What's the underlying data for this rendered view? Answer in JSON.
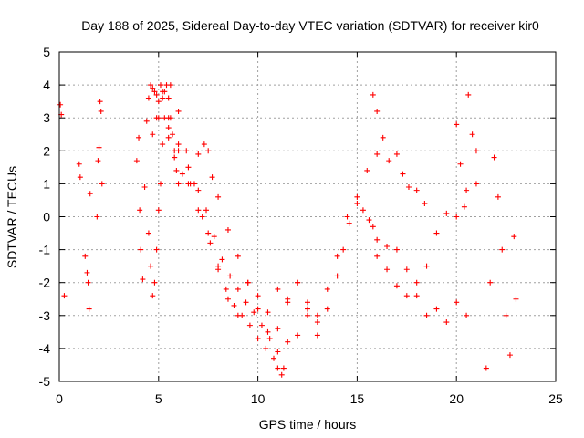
{
  "chart_data": {
    "type": "scatter",
    "title": "Day 188 of 2025, Sidereal Day-to-day VTEC variation (SDTVAR) for receiver kir0",
    "xlabel": "GPS time / hours",
    "ylabel": "SDTVAR / TECUs",
    "xlim": [
      0,
      25
    ],
    "ylim": [
      -5,
      5
    ],
    "xticks": [
      0,
      5,
      10,
      15,
      20,
      25
    ],
    "yticks": [
      -5,
      -4,
      -3,
      -2,
      -1,
      0,
      1,
      2,
      3,
      4,
      5
    ],
    "xtick_labels": [
      "0",
      "5",
      "10",
      "15",
      "20",
      "25"
    ],
    "ytick_labels": [
      "-5",
      "-4",
      "-3",
      "-2",
      "-1",
      "0",
      "1",
      "2",
      "3",
      "4",
      "5"
    ],
    "grid": true,
    "marker": "+",
    "series": [
      {
        "name": "SDTVAR",
        "color": "#ff0000",
        "x": [
          0.05,
          0.1,
          0.25,
          1.0,
          1.05,
          1.3,
          1.4,
          1.45,
          1.5,
          1.55,
          1.9,
          1.95,
          2.0,
          2.05,
          2.1,
          2.15,
          3.9,
          4.0,
          4.05,
          4.1,
          4.2,
          4.3,
          4.4,
          4.5,
          4.6,
          4.7,
          4.8,
          4.9,
          5.0,
          5.1,
          5.2,
          5.3,
          5.4,
          5.5,
          5.6,
          5.7,
          5.8,
          5.9,
          6.0,
          4.5,
          4.6,
          4.7,
          4.8,
          4.9,
          5.0,
          5.1,
          5.2,
          5.3,
          5.5,
          5.8,
          6.2,
          6.6,
          7.0,
          7.4,
          7.8,
          8.2,
          8.6,
          9.0,
          9.4,
          9.8,
          10.2,
          10.6,
          11.0,
          11.3,
          5.5,
          6.0,
          6.5,
          7.0,
          7.3,
          7.5,
          7.7,
          8.0,
          8.5,
          9.0,
          9.5,
          10.0,
          10.5,
          11.0,
          11.5,
          12.0,
          12.5,
          13.0,
          13.5,
          14.0,
          14.5,
          15.0,
          15.5,
          16.0,
          5.0,
          5.5,
          6.0,
          6.5,
          7.0,
          7.5,
          8.0,
          8.5,
          9.0,
          9.5,
          10.0,
          10.5,
          11.0,
          11.5,
          12.0,
          12.5,
          13.0,
          4.7,
          4.9,
          5.2,
          5.6,
          6.0,
          6.4,
          6.8,
          7.2,
          7.6,
          8.0,
          8.4,
          8.8,
          9.2,
          9.6,
          10.0,
          10.4,
          10.8,
          11.0,
          11.2,
          11.5,
          12.0,
          12.5,
          13.0,
          13.5,
          14.0,
          14.3,
          14.6,
          15.0,
          15.3,
          15.6,
          15.8,
          15.8,
          16.0,
          16.3,
          16.6,
          17.0,
          17.3,
          17.6,
          18.0,
          18.4,
          16.0,
          16.5,
          17.0,
          17.5,
          18.0,
          18.5,
          19.0,
          19.5,
          20.0,
          20.5,
          16.0,
          16.5,
          17.0,
          17.5,
          18.0,
          18.5,
          19.0,
          19.5,
          20.0,
          20.5,
          21.0,
          20.0,
          20.2,
          20.4,
          20.6,
          20.8,
          21.0,
          21.5,
          21.7,
          21.9,
          22.1,
          22.3,
          22.5,
          22.7,
          22.9,
          23.0
        ],
        "y": [
          3.4,
          3.1,
          -2.4,
          1.6,
          1.2,
          -1.2,
          -1.7,
          -2.0,
          -2.8,
          0.7,
          0.0,
          1.7,
          2.1,
          3.5,
          3.2,
          1.0,
          1.7,
          2.4,
          0.2,
          -1.0,
          -1.9,
          0.9,
          2.9,
          3.6,
          4.0,
          3.9,
          3.8,
          3.7,
          3.5,
          4.0,
          3.6,
          3.8,
          4.0,
          3.6,
          3.0,
          2.5,
          2.0,
          1.4,
          1.0,
          -0.5,
          -1.5,
          -2.4,
          -2.0,
          -1.0,
          0.2,
          1.0,
          2.2,
          3.0,
          2.4,
          1.8,
          1.3,
          1.0,
          0.8,
          0.2,
          -0.6,
          -1.3,
          -1.8,
          -2.2,
          -2.6,
          -2.9,
          -3.3,
          -3.7,
          -4.1,
          -4.6,
          3.0,
          2.2,
          1.5,
          1.9,
          2.2,
          2.0,
          1.2,
          0.6,
          -0.4,
          -1.2,
          -2.0,
          -2.4,
          -2.9,
          -3.4,
          -3.8,
          -3.6,
          -3.0,
          -3.6,
          -2.8,
          -1.2,
          0.0,
          0.6,
          1.4,
          1.9,
          3.0,
          2.7,
          2.0,
          1.0,
          0.2,
          -0.5,
          -1.5,
          -2.5,
          -3.0,
          -2.0,
          -2.8,
          -3.5,
          -2.2,
          -2.6,
          -2.0,
          -2.8,
          -3.2,
          2.5,
          3.0,
          3.8,
          4.0,
          3.2,
          2.0,
          1.0,
          0.0,
          -0.8,
          -1.6,
          -2.2,
          -2.7,
          -3.0,
          -3.3,
          -3.7,
          -4.0,
          -4.3,
          -4.6,
          -4.8,
          -2.5,
          -2.0,
          -2.6,
          -3.0,
          -2.2,
          -1.8,
          -1.0,
          -0.2,
          0.4,
          0.2,
          -0.1,
          -0.3,
          3.7,
          3.2,
          2.4,
          1.7,
          1.9,
          1.3,
          0.9,
          0.8,
          0.4,
          -0.7,
          -0.9,
          -1.0,
          -1.6,
          -2.4,
          -3.0,
          -2.8,
          -3.2,
          -2.6,
          -3.0,
          -1.2,
          -1.6,
          -2.1,
          -2.4,
          -2.0,
          -1.5,
          -0.5,
          0.1,
          0.0,
          0.8,
          2.0,
          2.8,
          1.6,
          0.3,
          3.7,
          2.5,
          1.0,
          -4.6,
          -2.0,
          1.8,
          0.6,
          -1.0,
          -3.0,
          -4.2,
          -0.6,
          -2.5
        ]
      }
    ]
  }
}
